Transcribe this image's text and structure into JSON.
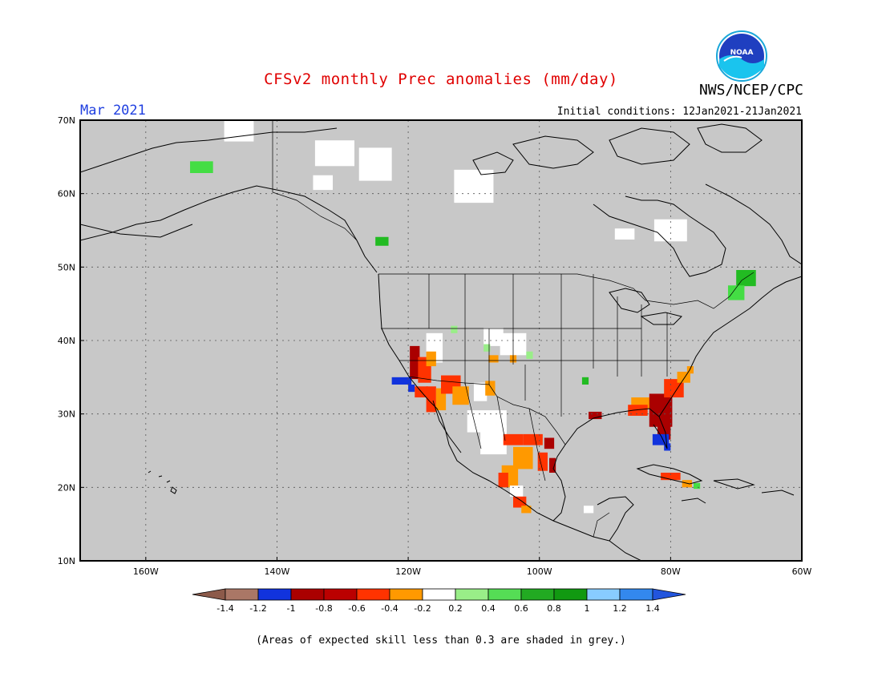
{
  "header": {
    "title": "CFSv2 monthly Prec anomalies (mm/day)",
    "month": "Mar 2021",
    "initial_conditions": "Initial conditions: 12Jan2021-21Jan2021",
    "org": "NWS/NCEP/CPC",
    "logo_text": "NOAA"
  },
  "map": {
    "lon_range": [
      -170,
      -60
    ],
    "lat_range": [
      10,
      70
    ],
    "lon_ticks": [
      "160W",
      "140W",
      "120W",
      "100W",
      "80W",
      "60W"
    ],
    "lat_ticks": [
      "10N",
      "20N",
      "30N",
      "40N",
      "50N",
      "60N",
      "70N"
    ],
    "grey_color": "#c8c8c8",
    "cells": [
      {
        "lon": -151.5,
        "lat": 63.6,
        "w": 3.5,
        "h": 1.6,
        "c": "#44dd44"
      },
      {
        "lon": -145.8,
        "lat": 68.6,
        "w": 4.5,
        "h": 3.0,
        "c": "#ffffff"
      },
      {
        "lon": -131.2,
        "lat": 65.5,
        "w": 6.0,
        "h": 3.5,
        "c": "#ffffff"
      },
      {
        "lon": -125.0,
        "lat": 64.0,
        "w": 5.0,
        "h": 4.5,
        "c": "#ffffff"
      },
      {
        "lon": -133.0,
        "lat": 61.5,
        "w": 3.0,
        "h": 2.0,
        "c": "#ffffff"
      },
      {
        "lon": -110.0,
        "lat": 61.0,
        "w": 6.0,
        "h": 4.5,
        "c": "#ffffff"
      },
      {
        "lon": -87.0,
        "lat": 54.5,
        "w": 3.0,
        "h": 1.5,
        "c": "#ffffff"
      },
      {
        "lon": -80.0,
        "lat": 55.0,
        "w": 5.0,
        "h": 3.0,
        "c": "#ffffff"
      },
      {
        "lon": -124.0,
        "lat": 53.5,
        "w": 2.0,
        "h": 1.2,
        "c": "#22bb22"
      },
      {
        "lon": -68.5,
        "lat": 48.5,
        "w": 3.0,
        "h": 2.2,
        "c": "#22bb22"
      },
      {
        "lon": -70.0,
        "lat": 46.5,
        "w": 2.5,
        "h": 2.0,
        "c": "#44dd44"
      },
      {
        "lon": -116.0,
        "lat": 39.0,
        "w": 2.5,
        "h": 4.0,
        "c": "#ffffff"
      },
      {
        "lon": -107.0,
        "lat": 40.5,
        "w": 3.0,
        "h": 2.5,
        "c": "#ffffff"
      },
      {
        "lon": -104.0,
        "lat": 39.5,
        "w": 4.0,
        "h": 3.0,
        "c": "#ffffff"
      },
      {
        "lon": -119.0,
        "lat": 37.0,
        "w": 1.5,
        "h": 4.5,
        "c": "#aa0000"
      },
      {
        "lon": -117.5,
        "lat": 36.0,
        "w": 2.0,
        "h": 3.5,
        "c": "#ff3300"
      },
      {
        "lon": -116.5,
        "lat": 37.5,
        "w": 1.5,
        "h": 2.0,
        "c": "#ff9900"
      },
      {
        "lon": -121.0,
        "lat": 34.5,
        "w": 3.0,
        "h": 1.0,
        "c": "#1133dd"
      },
      {
        "lon": -119.5,
        "lat": 33.5,
        "w": 1.0,
        "h": 1.0,
        "c": "#1133dd"
      },
      {
        "lon": -118.0,
        "lat": 33.0,
        "w": 2.0,
        "h": 1.5,
        "c": "#ff3300"
      },
      {
        "lon": -116.5,
        "lat": 32.0,
        "w": 1.5,
        "h": 3.5,
        "c": "#ff3300"
      },
      {
        "lon": -115.0,
        "lat": 32.0,
        "w": 1.5,
        "h": 3.0,
        "c": "#ff9900"
      },
      {
        "lon": -113.5,
        "lat": 34.0,
        "w": 3.0,
        "h": 2.5,
        "c": "#ff3300"
      },
      {
        "lon": -112.0,
        "lat": 32.5,
        "w": 2.5,
        "h": 2.5,
        "c": "#ff9900"
      },
      {
        "lon": -109.0,
        "lat": 33.0,
        "w": 2.0,
        "h": 2.5,
        "c": "#ffffff"
      },
      {
        "lon": -107.5,
        "lat": 33.5,
        "w": 1.5,
        "h": 2.0,
        "c": "#ff9900"
      },
      {
        "lon": -108.0,
        "lat": 29.0,
        "w": 6.0,
        "h": 3.0,
        "c": "#ffffff"
      },
      {
        "lon": -107.0,
        "lat": 26.5,
        "w": 4.0,
        "h": 4.0,
        "c": "#ffffff"
      },
      {
        "lon": -104.0,
        "lat": 26.5,
        "w": 3.0,
        "h": 1.5,
        "c": "#ff3300"
      },
      {
        "lon": -101.0,
        "lat": 26.5,
        "w": 3.0,
        "h": 1.5,
        "c": "#ff3300"
      },
      {
        "lon": -98.5,
        "lat": 26.0,
        "w": 1.5,
        "h": 1.5,
        "c": "#aa0000"
      },
      {
        "lon": -102.5,
        "lat": 24.0,
        "w": 3.0,
        "h": 3.0,
        "c": "#ff9900"
      },
      {
        "lon": -99.5,
        "lat": 23.5,
        "w": 1.5,
        "h": 2.5,
        "c": "#ff3300"
      },
      {
        "lon": -98.0,
        "lat": 23.0,
        "w": 1.0,
        "h": 2.0,
        "c": "#aa0000"
      },
      {
        "lon": -104.5,
        "lat": 21.5,
        "w": 2.5,
        "h": 3.0,
        "c": "#ff9900"
      },
      {
        "lon": -105.5,
        "lat": 21.0,
        "w": 1.5,
        "h": 2.0,
        "c": "#ff3300"
      },
      {
        "lon": -103.5,
        "lat": 19.5,
        "w": 2.0,
        "h": 1.5,
        "c": "#ffffff"
      },
      {
        "lon": -103.0,
        "lat": 18.0,
        "w": 2.0,
        "h": 1.5,
        "c": "#ff3300"
      },
      {
        "lon": -102.0,
        "lat": 17.0,
        "w": 1.5,
        "h": 1.0,
        "c": "#ff9900"
      },
      {
        "lon": -91.5,
        "lat": 29.8,
        "w": 2.0,
        "h": 1.0,
        "c": "#aa0000"
      },
      {
        "lon": -93.0,
        "lat": 34.5,
        "w": 1.0,
        "h": 1.0,
        "c": "#22bb22"
      },
      {
        "lon": -84.5,
        "lat": 31.5,
        "w": 3.0,
        "h": 1.5,
        "c": "#ff9900"
      },
      {
        "lon": -85.0,
        "lat": 30.5,
        "w": 3.0,
        "h": 1.5,
        "c": "#ff3300"
      },
      {
        "lon": -81.5,
        "lat": 30.5,
        "w": 3.5,
        "h": 4.5,
        "c": "#aa0000"
      },
      {
        "lon": -79.5,
        "lat": 33.5,
        "w": 3.0,
        "h": 2.5,
        "c": "#ff3300"
      },
      {
        "lon": -78.0,
        "lat": 35.0,
        "w": 2.0,
        "h": 1.5,
        "c": "#ff9900"
      },
      {
        "lon": -77.0,
        "lat": 36.0,
        "w": 1.0,
        "h": 1.0,
        "c": "#ff9900"
      },
      {
        "lon": -81.0,
        "lat": 27.5,
        "w": 2.0,
        "h": 2.0,
        "c": "#aa0000"
      },
      {
        "lon": -81.5,
        "lat": 26.5,
        "w": 2.5,
        "h": 1.5,
        "c": "#1133dd"
      },
      {
        "lon": -80.5,
        "lat": 25.5,
        "w": 1.0,
        "h": 1.0,
        "c": "#1133dd"
      },
      {
        "lon": -80.0,
        "lat": 21.5,
        "w": 3.0,
        "h": 1.0,
        "c": "#ff3300"
      },
      {
        "lon": -77.5,
        "lat": 20.5,
        "w": 1.5,
        "h": 1.0,
        "c": "#ff9900"
      },
      {
        "lon": -76.0,
        "lat": 20.2,
        "w": 1.0,
        "h": 0.8,
        "c": "#44dd44"
      },
      {
        "lon": -92.5,
        "lat": 17.0,
        "w": 1.5,
        "h": 1.0,
        "c": "#ffffff"
      },
      {
        "lon": -113.0,
        "lat": 41.5,
        "w": 1.0,
        "h": 1.0,
        "c": "#99ee88"
      },
      {
        "lon": -108.0,
        "lat": 39.0,
        "w": 1.0,
        "h": 1.0,
        "c": "#99ee88"
      },
      {
        "lon": -101.5,
        "lat": 38.0,
        "w": 1.0,
        "h": 1.0,
        "c": "#99ee88"
      },
      {
        "lon": -104.0,
        "lat": 37.5,
        "w": 1.0,
        "h": 1.0,
        "c": "#ff9900"
      },
      {
        "lon": -107.0,
        "lat": 37.5,
        "w": 1.5,
        "h": 1.0,
        "c": "#ff9900"
      }
    ]
  },
  "colorbar": {
    "colors": [
      "#8c5a4a",
      "#aa7766",
      "#1133dd",
      "#aa0000",
      "#bb0000",
      "#ff3300",
      "#ff9900",
      "#ffffff",
      "#99ee88",
      "#55dd55",
      "#22aa22",
      "#119911",
      "#88ccff",
      "#3388ee",
      "#2255dd"
    ],
    "labels": [
      "-1.4",
      "-1.2",
      "-1",
      "-0.8",
      "-0.6",
      "-0.4",
      "-0.2",
      "0.2",
      "0.4",
      "0.6",
      "0.8",
      "1",
      "1.2",
      "1.4"
    ]
  },
  "footer": {
    "note": "(Areas of expected skill less than 0.3 are shaded in grey.)"
  }
}
